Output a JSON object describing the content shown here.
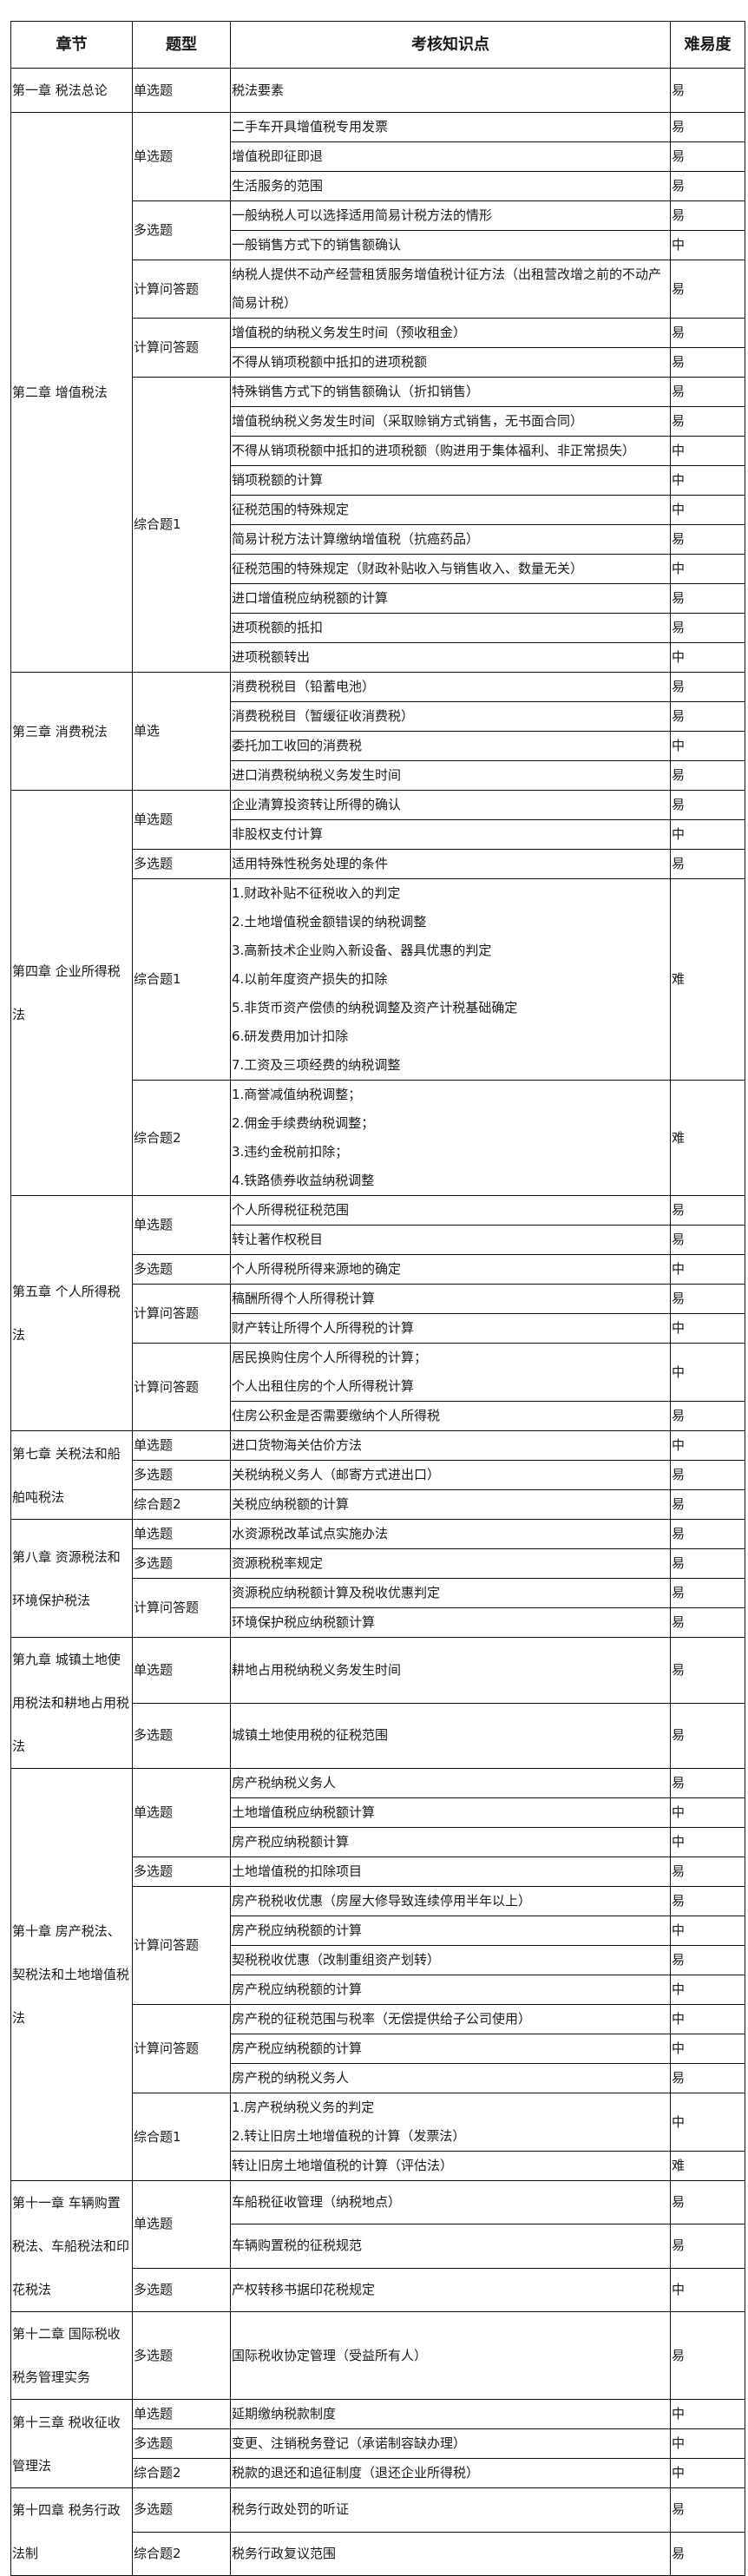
{
  "header": {
    "chapter": "章节",
    "type": "题型",
    "point": "考核知识点",
    "level": "难易度"
  },
  "chapters": [
    {
      "name": "第一章 税法总论",
      "groups": [
        {
          "type": "单选题",
          "items": [
            {
              "lines": [
                "税法要素"
              ],
              "level": "易"
            }
          ]
        }
      ]
    },
    {
      "name": "第二章 增值税法",
      "groups": [
        {
          "type": "单选题",
          "items": [
            {
              "lines": [
                "二手车开具增值税专用发票"
              ],
              "level": "易"
            },
            {
              "lines": [
                "增值税即征即退"
              ],
              "level": "易"
            },
            {
              "lines": [
                "生活服务的范围"
              ],
              "level": "易"
            }
          ]
        },
        {
          "type": "多选题",
          "items": [
            {
              "lines": [
                "一般纳税人可以选择适用简易计税方法的情形"
              ],
              "level": "易"
            },
            {
              "lines": [
                "一般销售方式下的销售额确认"
              ],
              "level": "中"
            }
          ]
        },
        {
          "type": "计算问答题",
          "items": [
            {
              "lines": [
                "纳税人提供不动产经营租赁服务增值税计征方法（出租营改增之前的不动产简易计税）"
              ],
              "level": "易"
            }
          ]
        },
        {
          "type": "计算问答题",
          "items": [
            {
              "lines": [
                "增值税的纳税义务发生时间（预收租金）"
              ],
              "level": "易"
            },
            {
              "lines": [
                "不得从销项税额中抵扣的进项税额"
              ],
              "level": "易"
            }
          ]
        },
        {
          "type": "综合题1",
          "items": [
            {
              "lines": [
                "特殊销售方式下的销售额确认（折扣销售）"
              ],
              "level": "易"
            },
            {
              "lines": [
                "增值税纳税义务发生时间（采取赊销方式销售，无书面合同）"
              ],
              "level": "易"
            },
            {
              "lines": [
                "不得从销项税额中抵扣的进项税额（购进用于集体福利、非正常损失）"
              ],
              "level": "中"
            },
            {
              "lines": [
                "销项税额的计算"
              ],
              "level": "中"
            },
            {
              "lines": [
                "征税范围的特殊规定"
              ],
              "level": "中"
            },
            {
              "lines": [
                "简易计税方法计算缴纳增值税（抗癌药品）"
              ],
              "level": "易"
            },
            {
              "lines": [
                "征税范围的特殊规定（财政补贴收入与销售收入、数量无关）"
              ],
              "level": "中"
            },
            {
              "lines": [
                "进口增值税应纳税额的计算"
              ],
              "level": "易"
            },
            {
              "lines": [
                "进项税额的抵扣"
              ],
              "level": "易"
            },
            {
              "lines": [
                "进项税额转出"
              ],
              "level": "中"
            }
          ]
        }
      ]
    },
    {
      "name": "第三章 消费税法",
      "groups": [
        {
          "type": "单选",
          "items": [
            {
              "lines": [
                "消费税税目（铅蓄电池）"
              ],
              "level": "易"
            },
            {
              "lines": [
                "消费税税目（暂缓征收消费税）"
              ],
              "level": "易"
            },
            {
              "lines": [
                "委托加工收回的消费税"
              ],
              "level": "中"
            },
            {
              "lines": [
                "进口消费税纳税义务发生时间"
              ],
              "level": "易"
            }
          ]
        }
      ]
    },
    {
      "name": "第四章 企业所得税法",
      "groups": [
        {
          "type": "单选题",
          "items": [
            {
              "lines": [
                "企业清算投资转让所得的确认"
              ],
              "level": "易"
            },
            {
              "lines": [
                "非股权支付计算"
              ],
              "level": "中"
            }
          ]
        },
        {
          "type": "多选题",
          "items": [
            {
              "lines": [
                "适用特殊性税务处理的条件"
              ],
              "level": "易"
            }
          ]
        },
        {
          "type": "综合题1",
          "items": [
            {
              "lines": [
                "1.财政补贴不征税收入的判定",
                "2.土地增值税金额错误的纳税调整",
                "3.高新技术企业购入新设备、器具优惠的判定",
                "4.以前年度资产损失的扣除",
                "5.非货币资产偿债的纳税调整及资产计税基础确定",
                "6.研发费用加计扣除",
                "7.工资及三项经费的纳税调整"
              ],
              "level": "难"
            }
          ]
        },
        {
          "type": "综合题2",
          "items": [
            {
              "lines": [
                "1.商誉减值纳税调整；",
                "2.佣金手续费纳税调整；",
                "3.违约金税前扣除；",
                "4.铁路债券收益纳税调整"
              ],
              "level": "难"
            }
          ]
        }
      ]
    },
    {
      "name": "第五章 个人所得税法",
      "groups": [
        {
          "type": "单选题",
          "items": [
            {
              "lines": [
                "个人所得税征税范围"
              ],
              "level": "易"
            },
            {
              "lines": [
                "转让著作权税目"
              ],
              "level": "易"
            }
          ]
        },
        {
          "type": "多选题",
          "items": [
            {
              "lines": [
                "个人所得税所得来源地的确定"
              ],
              "level": "中"
            }
          ]
        },
        {
          "type": "计算问答题",
          "items": [
            {
              "lines": [
                "稿酬所得个人所得税计算"
              ],
              "level": "易"
            },
            {
              "lines": [
                "财产转让所得个人所得税的计算"
              ],
              "level": "中"
            }
          ]
        },
        {
          "type": "计算问答题",
          "items": [
            {
              "lines": [
                "居民换购住房个人所得税的计算；",
                "个人出租住房的个人所得税计算"
              ],
              "level": "中"
            },
            {
              "lines": [
                "住房公积金是否需要缴纳个人所得税"
              ],
              "level": "易"
            }
          ]
        }
      ]
    },
    {
      "name": "第七章 关税法和船舶吨税法",
      "groups": [
        {
          "type": "单选题",
          "items": [
            {
              "lines": [
                "进口货物海关估价方法"
              ],
              "level": "中"
            }
          ]
        },
        {
          "type": "多选题",
          "items": [
            {
              "lines": [
                "关税纳税义务人（邮寄方式进出口）"
              ],
              "level": "易"
            }
          ]
        },
        {
          "type": "综合题2",
          "items": [
            {
              "lines": [
                "关税应纳税额的计算"
              ],
              "level": "易"
            }
          ]
        }
      ]
    },
    {
      "name": "第八章 资源税法和环境保护税法",
      "groups": [
        {
          "type": "单选题",
          "items": [
            {
              "lines": [
                "水资源税改革试点实施办法"
              ],
              "level": "易"
            }
          ]
        },
        {
          "type": "多选题",
          "items": [
            {
              "lines": [
                "资源税税率规定"
              ],
              "level": "易"
            }
          ]
        },
        {
          "type": "计算问答题",
          "items": [
            {
              "lines": [
                "资源税应纳税额计算及税收优惠判定"
              ],
              "level": "易"
            },
            {
              "lines": [
                "环境保护税应纳税额计算"
              ],
              "level": "易"
            }
          ]
        }
      ]
    },
    {
      "name": "第九章 城镇土地使用税法和耕地占用税法",
      "groups": [
        {
          "type": "单选题",
          "items": [
            {
              "lines": [
                "耕地占用税纳税义务发生时间"
              ],
              "level": "易"
            }
          ]
        },
        {
          "type": "多选题",
          "items": [
            {
              "lines": [
                "城镇土地使用税的征税范围"
              ],
              "level": "易"
            }
          ]
        }
      ]
    },
    {
      "name": "第十章 房产税法、契税法和土地增值税法",
      "groups": [
        {
          "type": "单选题",
          "items": [
            {
              "lines": [
                "房产税纳税义务人"
              ],
              "level": "易"
            },
            {
              "lines": [
                "土地增值税应纳税额计算"
              ],
              "level": "中"
            },
            {
              "lines": [
                "房产税应纳税额计算"
              ],
              "level": "中"
            }
          ]
        },
        {
          "type": "多选题",
          "items": [
            {
              "lines": [
                "土地增值税的扣除项目"
              ],
              "level": "易"
            }
          ]
        },
        {
          "type": "计算问答题",
          "items": [
            {
              "lines": [
                "房产税税收优惠（房屋大修导致连续停用半年以上）"
              ],
              "level": "易"
            },
            {
              "lines": [
                "房产税应纳税额的计算"
              ],
              "level": "中"
            },
            {
              "lines": [
                "契税税收优惠（改制重组资产划转）"
              ],
              "level": "易"
            },
            {
              "lines": [
                "房产税应纳税额的计算"
              ],
              "level": "中"
            }
          ]
        },
        {
          "type": "计算问答题",
          "items": [
            {
              "lines": [
                "房产税的征税范围与税率（无偿提供给子公司使用）"
              ],
              "level": "中"
            },
            {
              "lines": [
                "房产税应纳税额的计算"
              ],
              "level": "中"
            },
            {
              "lines": [
                "房产税的纳税义务人"
              ],
              "level": "易"
            }
          ]
        },
        {
          "type": "综合题1",
          "items": [
            {
              "lines": [
                "1.房产税纳税义务的判定",
                "2.转让旧房土地增值税的计算（发票法）"
              ],
              "level": "中"
            },
            {
              "lines": [
                "转让旧房土地增值税的计算（评估法）"
              ],
              "level": "难"
            }
          ]
        }
      ]
    },
    {
      "name": "第十一章 车辆购置税法、车船税法和印花税法",
      "groups": [
        {
          "type": "单选题",
          "items": [
            {
              "lines": [
                "车船税征收管理（纳税地点）"
              ],
              "level": "易"
            },
            {
              "lines": [
                "车辆购置税的征税规范"
              ],
              "level": "易"
            }
          ]
        },
        {
          "type": "多选题",
          "items": [
            {
              "lines": [
                "产权转移书据印花税规定"
              ],
              "level": "中"
            }
          ]
        }
      ]
    },
    {
      "name": "第十二章 国际税收税务管理实务",
      "groups": [
        {
          "type": "多选题",
          "items": [
            {
              "lines": [
                "国际税收协定管理（受益所有人）"
              ],
              "level": "易"
            }
          ]
        }
      ]
    },
    {
      "name": "第十三章 税收征收管理法",
      "groups": [
        {
          "type": "单选题",
          "items": [
            {
              "lines": [
                "延期缴纳税款制度"
              ],
              "level": "中"
            }
          ]
        },
        {
          "type": "多选题",
          "items": [
            {
              "lines": [
                "变更、注销税务登记（承诺制容缺办理）"
              ],
              "level": "中"
            }
          ]
        },
        {
          "type": "综合题2",
          "items": [
            {
              "lines": [
                "税款的退还和追征制度（退还企业所得税）"
              ],
              "level": "中"
            }
          ]
        }
      ]
    },
    {
      "name": "第十四章 税务行政法制",
      "groups": [
        {
          "type": "多选题",
          "items": [
            {
              "lines": [
                "税务行政处罚的听证"
              ],
              "level": "易"
            }
          ]
        },
        {
          "type": "综合题2",
          "items": [
            {
              "lines": [
                "税务行政复议范围"
              ],
              "level": "易"
            }
          ]
        }
      ]
    }
  ]
}
